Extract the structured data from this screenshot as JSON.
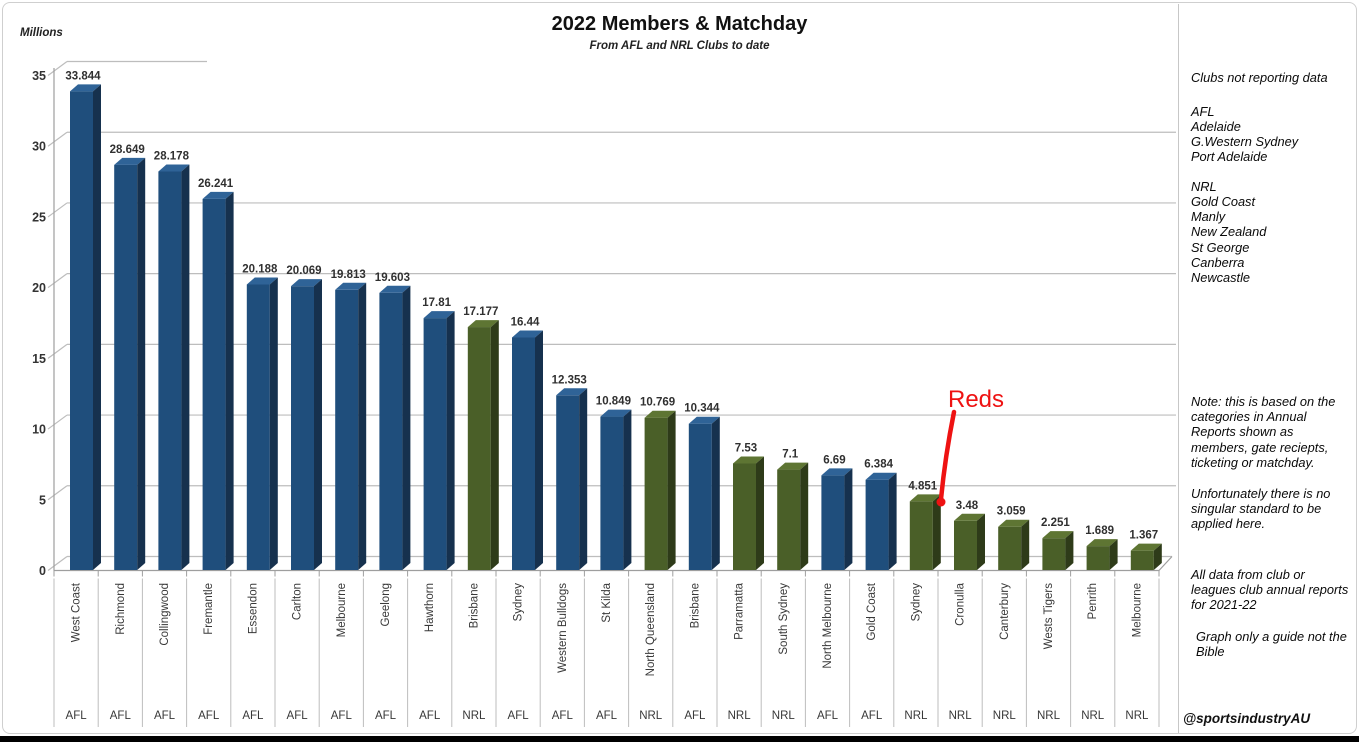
{
  "title": "2022 Members & Matchday",
  "subtitle": "From AFL and NRL Clubs to date",
  "axis_unit_label": "Millions",
  "watermark": "@sportsindustryAU",
  "annotation": {
    "text": "Reds",
    "color": "#ee1212"
  },
  "colors": {
    "afl_front": "#1F4E7C",
    "afl_top": "#2F6397",
    "afl_side": "#16314E",
    "nrl_front": "#4A5F28",
    "nrl_top": "#5E7533",
    "nrl_side": "#2E3B19",
    "grid": "#bdbdbd",
    "axis": "#9e9e9e",
    "label_text": "#303030"
  },
  "side_panel": {
    "not_reporting_title": "Clubs not reporting data",
    "afl_header": "AFL",
    "afl_clubs": [
      "Adelaide",
      "G.Western Sydney",
      "Port Adelaide"
    ],
    "nrl_header": "NRL",
    "nrl_clubs": [
      "Gold Coast",
      "Manly",
      "New Zealand",
      "St George",
      "Canberra",
      "Newcastle"
    ],
    "note1": "Note: this is based on the categories in Annual Reports shown as members, gate reciepts, ticketing or matchday.",
    "note2": "Unfortunately there is no singular standard to be applied here.",
    "note3": "All data from club or leagues club annual reports for 2021-22",
    "note4": "Graph only a guide not the Bible"
  },
  "chart_data": {
    "type": "bar",
    "style": "3d-column",
    "title": "2022 Members & Matchday",
    "subtitle": "From AFL and NRL Clubs to date",
    "ylabel": "Millions",
    "ylim": [
      0,
      35
    ],
    "yticks": [
      0,
      5,
      10,
      15,
      20,
      25,
      30,
      35
    ],
    "grid": true,
    "legend": false,
    "categories": [
      "West Coast",
      "Richmond",
      "Collingwood",
      "Fremantle",
      "Essendon",
      "Carlton",
      "Melbourne",
      "Geelong",
      "Hawthorn",
      "Brisbane",
      "Sydney",
      "Western Bulldogs",
      "St Kilda",
      "North Queensland",
      "Brisbane",
      "Parramatta",
      "South Sydney",
      "North Melbourne",
      "Gold Coast",
      "Sydney",
      "Cronulla",
      "Canterbury",
      "Wests Tigers",
      "Penrith",
      "Melbourne"
    ],
    "leagues": [
      "AFL",
      "AFL",
      "AFL",
      "AFL",
      "AFL",
      "AFL",
      "AFL",
      "AFL",
      "AFL",
      "NRL",
      "AFL",
      "AFL",
      "AFL",
      "NRL",
      "AFL",
      "NRL",
      "NRL",
      "AFL",
      "AFL",
      "NRL",
      "NRL",
      "NRL",
      "NRL",
      "NRL",
      "NRL"
    ],
    "values": [
      33.844,
      28.649,
      28.178,
      26.241,
      20.188,
      20.069,
      19.813,
      19.603,
      17.81,
      17.177,
      16.44,
      12.353,
      10.849,
      10.769,
      10.344,
      7.53,
      7.1,
      6.69,
      6.384,
      4.851,
      3.48,
      3.059,
      2.251,
      1.689,
      1.367
    ],
    "series_colors": {
      "AFL": "#1F4E7C",
      "NRL": "#4A5F28"
    },
    "annotation": {
      "text": "Reds",
      "points_to_category": "Sydney (NRL)"
    }
  }
}
